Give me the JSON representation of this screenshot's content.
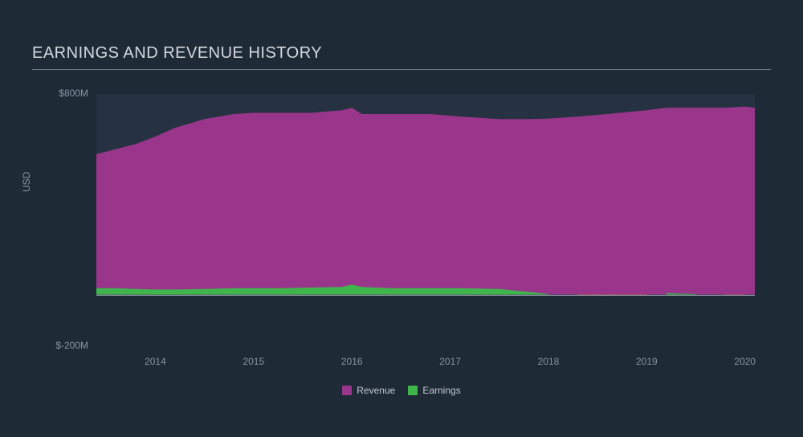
{
  "chart": {
    "type": "area",
    "title": "EARNINGS AND REVENUE HISTORY",
    "title_fontsize": 20,
    "title_color": "#d4d9e0",
    "background_color": "#1f2a37",
    "plot_band_color": "#263241",
    "plot_band_top_value": 800,
    "plot_band_bottom_value": 100,
    "zero_line_color": "#aeb7c4",
    "ylabel": "USD",
    "currency_prefix": "$",
    "currency_suffix": "M",
    "ylim": [
      -200,
      800
    ],
    "yticks": [
      800,
      -200
    ],
    "tick_label_color": "#8a94a3",
    "tick_fontsize": 12,
    "x_years": [
      2013.4,
      2013.6,
      2013.8,
      2014.0,
      2014.2,
      2014.5,
      2014.8,
      2015.0,
      2015.3,
      2015.6,
      2015.9,
      2016.0,
      2016.1,
      2016.4,
      2016.8,
      2017.1,
      2017.5,
      2017.8,
      2018.0,
      2018.3,
      2018.6,
      2019.0,
      2019.2,
      2019.5,
      2019.8,
      2020.0,
      2020.1
    ],
    "xlim": [
      2013.4,
      2020.1
    ],
    "xticks": [
      2014,
      2015,
      2016,
      2017,
      2018,
      2019,
      2020
    ],
    "series": [
      {
        "name": "Revenue",
        "legend_label": "Revenue",
        "color": "#99368b",
        "values": [
          560,
          580,
          600,
          630,
          665,
          700,
          720,
          725,
          725,
          725,
          735,
          745,
          720,
          720,
          720,
          710,
          700,
          700,
          702,
          710,
          720,
          735,
          745,
          745,
          745,
          750,
          745
        ]
      },
      {
        "name": "Earnings",
        "legend_label": "Earnings",
        "color": "#3fb54b",
        "negative_color": "#d9553a",
        "values": [
          25,
          25,
          22,
          20,
          20,
          22,
          25,
          25,
          25,
          28,
          30,
          40,
          30,
          25,
          25,
          25,
          22,
          10,
          2,
          -4,
          -5,
          -2,
          5,
          2,
          -4,
          -2,
          4
        ]
      }
    ],
    "legend_fontsize": 12,
    "legend_text_color": "#c2c9d3"
  }
}
